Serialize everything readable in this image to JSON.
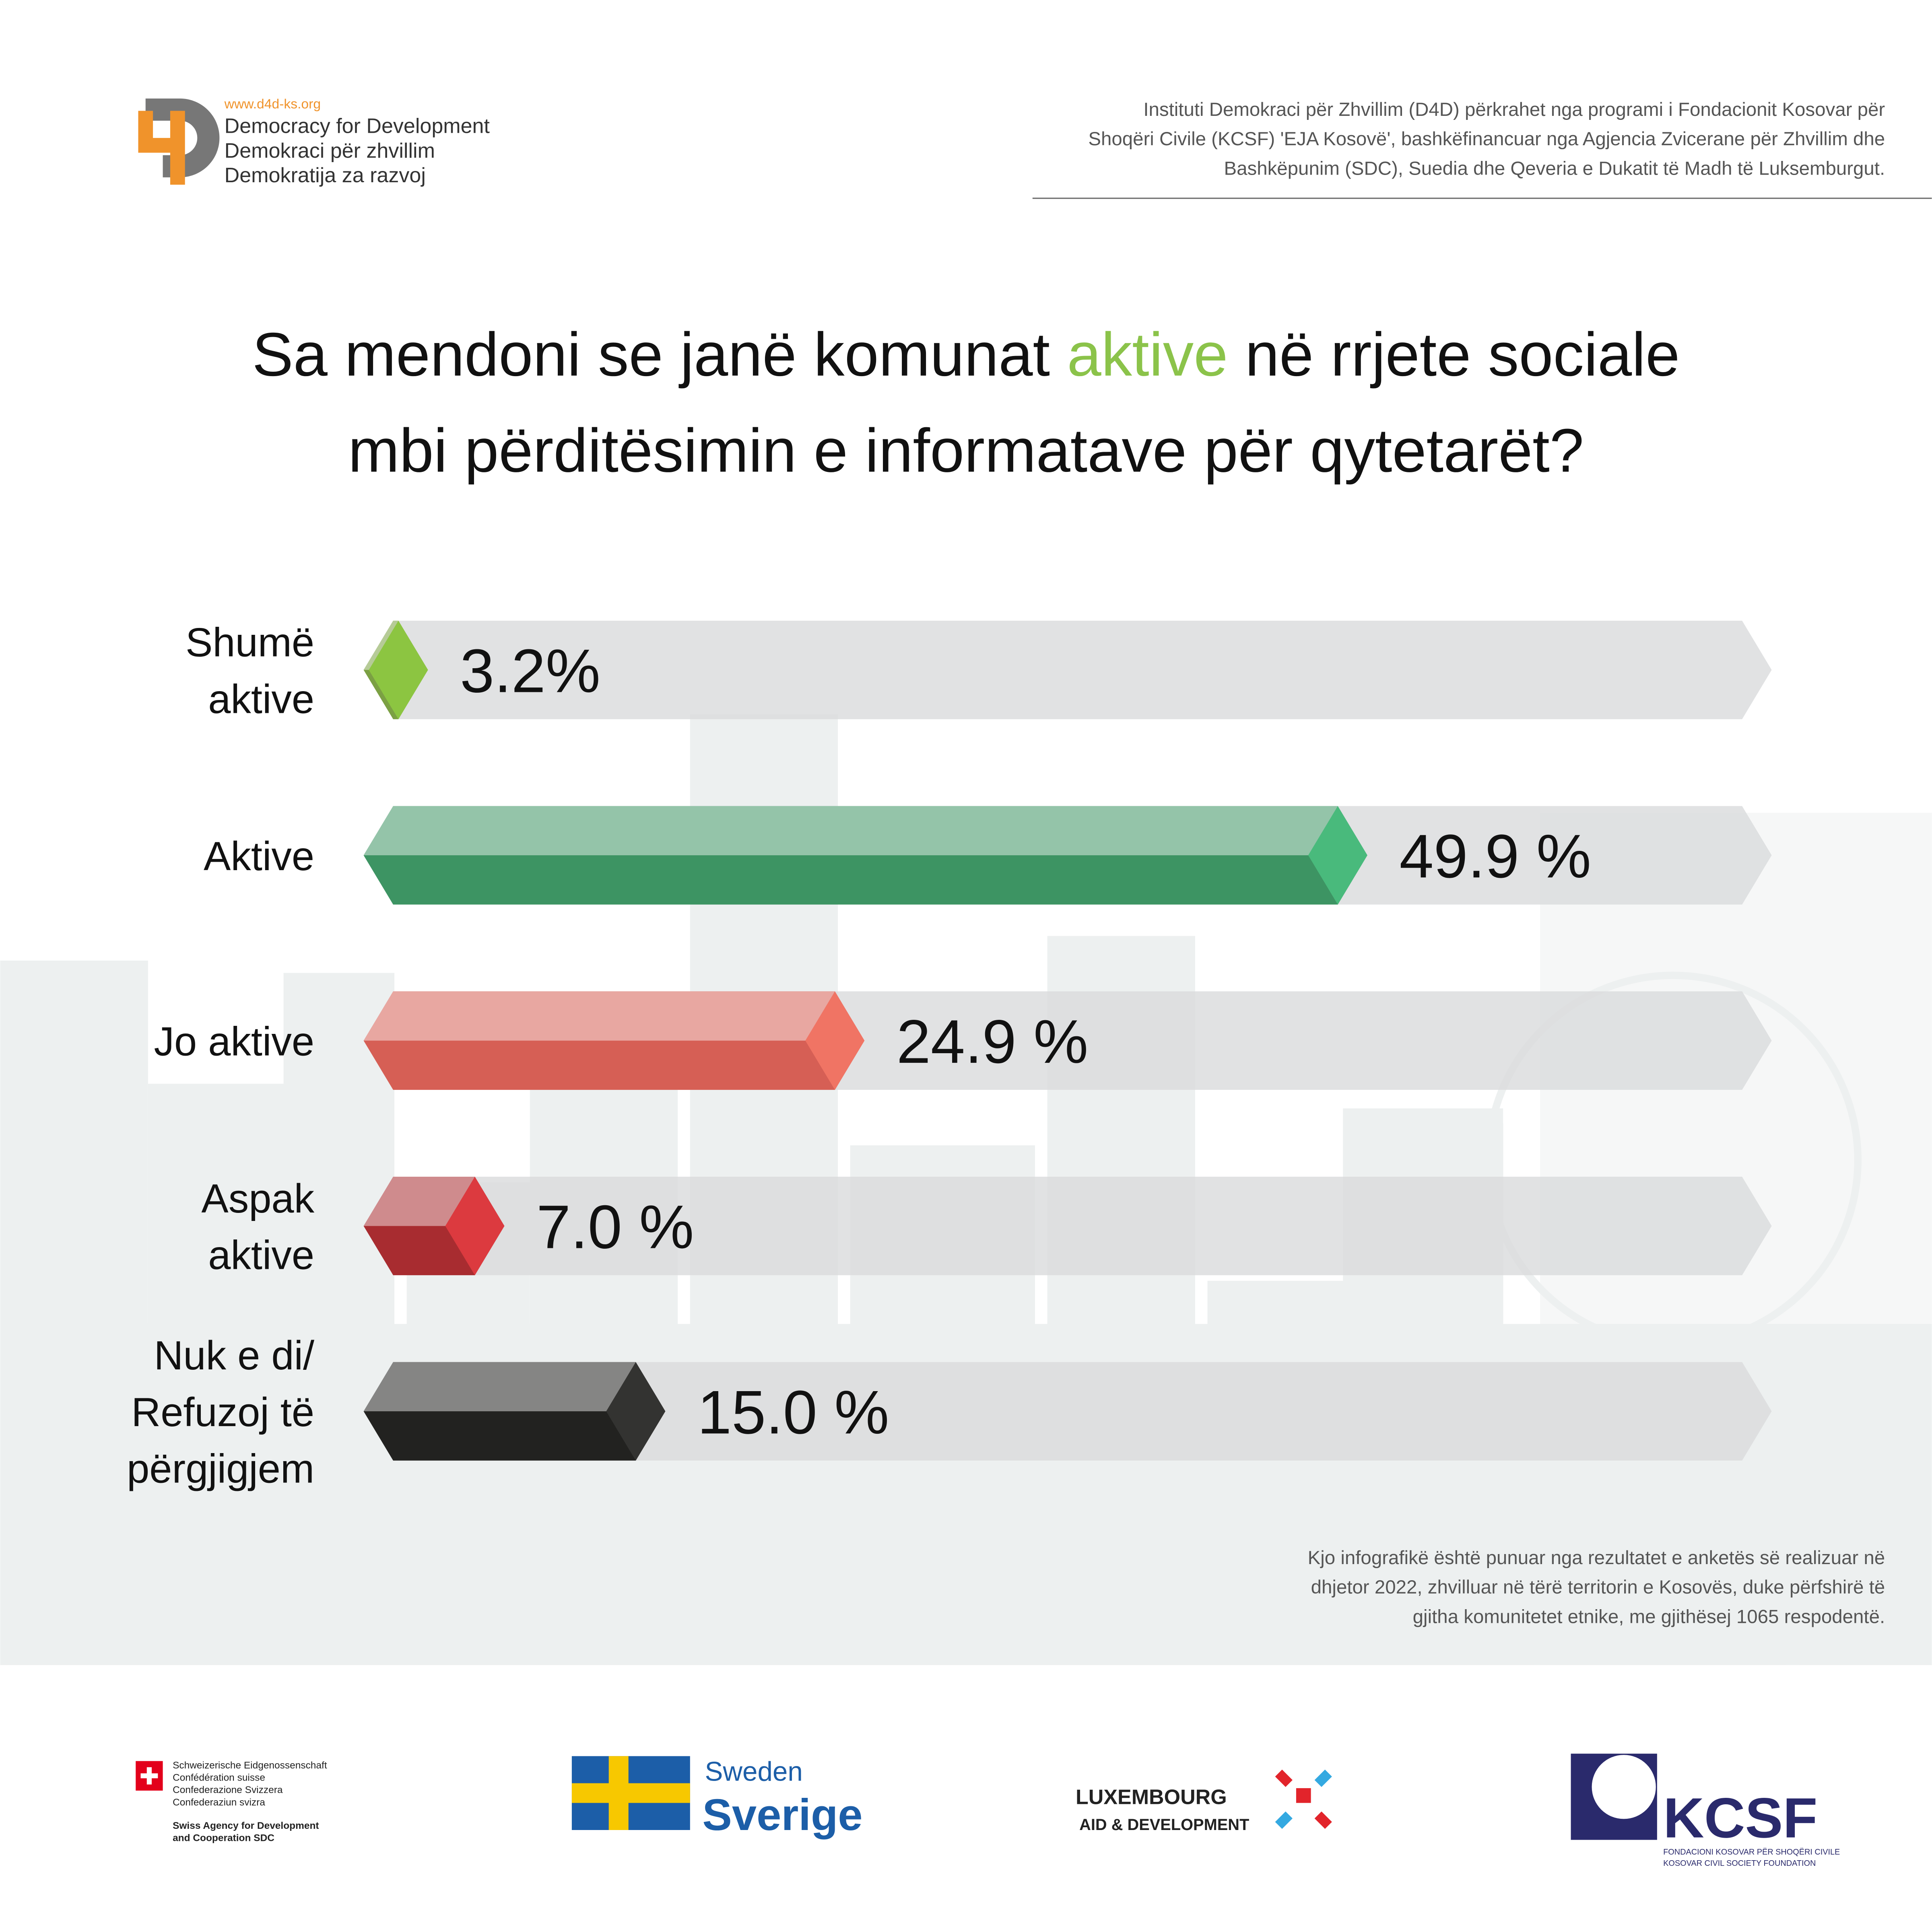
{
  "header": {
    "url": "www.d4d-ks.org",
    "org_lines": [
      "Democracy for Development",
      "Demokraci për zhvillim",
      "Demokratija za razvoj"
    ],
    "support_lines": [
      "Instituti Demokraci për Zhvillim (D4D) përkrahet nga programi i Fondacionit Kosovar për",
      "Shoqëri Civile (KCSF) 'EJA Kosovë', bashkëfinancuar nga Agjencia Zvicerane për Zhvillim dhe",
      "Bashkëpunim (SDC), Suedia dhe Qeveria e Dukatit të Madh të Luksemburgut."
    ]
  },
  "chart_data": {
    "type": "bar",
    "orientation": "horizontal",
    "title": [
      [
        "Sa mendoni se janë komunat ",
        "aktive",
        " në rrjete sociale"
      ],
      [
        "mbi përditësimin e informatave për qytetarët?"
      ]
    ],
    "title_highlight_color": "#8bc34a",
    "categories": [
      [
        "Shumë",
        "aktive"
      ],
      [
        "Aktive"
      ],
      [
        "Jo aktive"
      ],
      [
        "Aspak",
        "aktive"
      ],
      [
        "Nuk e di/",
        "Refuzoj të",
        "përgjigjem"
      ]
    ],
    "values": [
      3.2,
      49.9,
      24.9,
      7.0,
      15.0
    ],
    "value_labels": [
      "3.2%",
      "49.9 %",
      "24.9 %",
      "7.0 %",
      "15.0 %"
    ],
    "colors": [
      "#7ba043",
      "#3d9463",
      "#d65f55",
      "#a82c30",
      "#222220"
    ],
    "tip_colors": [
      "#8cc541",
      "#49ba7c",
      "#f07464",
      "#dc3a3f",
      "#333331"
    ],
    "xlim": [
      0,
      70
    ]
  },
  "footnote": [
    "Kjo infografikë është punuar nga rezultatet e anketës së realizuar në",
    "dhjetor 2022, zhvilluar në tërë territorin e Kosovës, duke përfshirë të",
    "gjitha komunitetet etnike, me gjithësej 1065 respodentë."
  ],
  "sponsors": {
    "swiss": [
      "Schweizerische Eidgenossenschaft",
      "Confédération suisse",
      "Confederazione Svizzera",
      "Confederaziun svizra"
    ],
    "sdc": [
      "Swiss Agency for Development",
      "and Cooperation SDC"
    ],
    "sweden": [
      "Sweden",
      "Sverige"
    ],
    "luxembourg": [
      "LUXEMBOURG",
      "AID & DEVELOPMENT"
    ],
    "kcsf": [
      "KCSF",
      "FONDACIONI KOSOVAR PËR SHOQËRI CIVILE",
      "KOSOVAR CIVIL SOCIETY FOUNDATION"
    ]
  }
}
